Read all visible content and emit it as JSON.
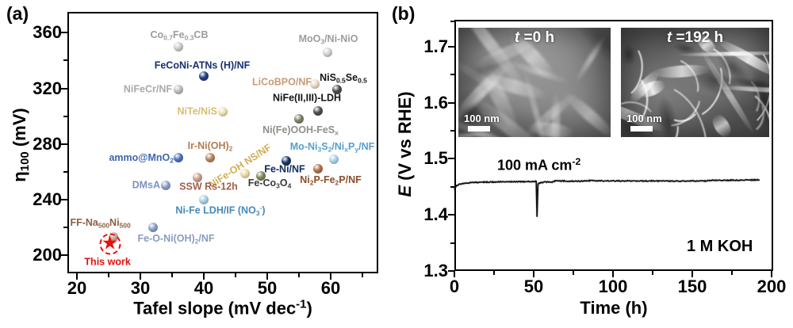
{
  "icons": {
    "star-marker": "★"
  },
  "panels": {
    "a": {
      "tag": "(a)",
      "xlabel": "Tafel slope (mV dec^{-1})",
      "ylabel": "η_{100} (mV)"
    },
    "b": {
      "tag": "(b)",
      "xlabel": "Time (h)",
      "ylabel": "*E* (V vs RHE)",
      "current_density_label": "100 mA cm^{-2}",
      "electrolyte_label": "1 M KOH",
      "insets": [
        {
          "time_label": "*t* =0 h",
          "scalebar_label": "100 nm"
        },
        {
          "time_label": "*t* =192 h",
          "scalebar_label": "100 nm"
        }
      ]
    }
  },
  "chart_data": [
    {
      "id": "catalyst-benchmark-scatter",
      "type": "scatter",
      "title": "",
      "xlabel": "Tafel slope (mV dec-1)",
      "ylabel": "eta100 (mV)",
      "xlim": [
        18.5,
        67.5
      ],
      "ylim": [
        187,
        375
      ],
      "grid": false,
      "legend": "none",
      "xticks": [
        {
          "v": 20,
          "t": "20"
        },
        {
          "v": 30,
          "t": "30"
        },
        {
          "v": 40,
          "t": "40"
        },
        {
          "v": 50,
          "t": "50"
        },
        {
          "v": 60,
          "t": "60"
        }
      ],
      "xticks_minor": [
        25,
        35,
        45,
        55,
        65
      ],
      "yticks": [
        {
          "v": 200,
          "t": "200"
        },
        {
          "v": 240,
          "t": "240"
        },
        {
          "v": 280,
          "t": "280"
        },
        {
          "v": 320,
          "t": "320"
        },
        {
          "v": 360,
          "t": "360"
        }
      ],
      "yticks_minor": [
        220,
        260,
        300,
        340
      ],
      "points": [
        {
          "label": "Co_{0.7}Fe_{0.3}CB",
          "tafel": 36,
          "eta": 350,
          "color": "#cbcbcb",
          "label_color": "#9c9c9c",
          "anchor": "center",
          "lx": 1,
          "ly": -14
        },
        {
          "label": "MoO_{3}/Ni-NiO",
          "tafel": 59.5,
          "eta": 346,
          "color": "#d2d2d2",
          "label_color": "#9c9c9c",
          "anchor": "center",
          "lx": 1,
          "ly": -16
        },
        {
          "label": "FeCoNi-ATNs (H)/NF",
          "tafel": 40,
          "eta": 329,
          "color": "#223f7e",
          "label_color": "#163070",
          "anchor": "center",
          "lx": -2,
          "ly": -13
        },
        {
          "label": "NiFeCr/NF",
          "tafel": 36,
          "eta": 319,
          "color": "#bdbdbd",
          "label_color": "#a9a9a9",
          "anchor": "right",
          "lx": -8,
          "ly": 0
        },
        {
          "label": "LiCoBPO/NF",
          "tafel": 57.5,
          "eta": 323,
          "color": "#ead9c5",
          "label_color": "#c89b76",
          "anchor": "right",
          "lx": -4,
          "ly": -2
        },
        {
          "label": "NiS_{0.5}Se_{0.5}",
          "tafel": 61,
          "eta": 319,
          "color": "#4b4b4b",
          "label_color": "#141414",
          "anchor": "center",
          "lx": 8,
          "ly": -14
        },
        {
          "label": "NiFe(II,III)-LDH",
          "tafel": 58,
          "eta": 304,
          "color": "#4e4e4e",
          "label_color": "#141414",
          "anchor": "center",
          "lx": -14,
          "ly": -16
        },
        {
          "label": "NiTe/NiS",
          "tafel": 43,
          "eta": 303,
          "color": "#ecdfae",
          "label_color": "#d8bd6e",
          "anchor": "right",
          "lx": -7,
          "ly": 0
        },
        {
          "label": "Ni(Fe)OOH-FeS_{x}",
          "tafel": 55,
          "eta": 298,
          "color": "#7e8163",
          "label_color": "#8f9089",
          "anchor": "center",
          "lx": 2,
          "ly": 15
        },
        {
          "label": "ammo@MnO_{2}",
          "tafel": 36,
          "eta": 270,
          "color": "#4f73b8",
          "label_color": "#3f66ae",
          "anchor": "right",
          "lx": -6,
          "ly": 1
        },
        {
          "label": "Ir-Ni(OH)_{2}",
          "tafel": 41,
          "eta": 270,
          "color": "#b8835c",
          "label_color": "#b57c4e",
          "anchor": "center",
          "lx": 0,
          "ly": -14
        },
        {
          "label": "NiFe-OH NS/NF",
          "tafel": 46.5,
          "eta": 259,
          "color": "#ecd9a2",
          "label_color": "#d2ae52",
          "anchor": "center",
          "lx": -6,
          "ly": -9,
          "rotate": -33
        },
        {
          "label": "Fe-Ni/NF",
          "tafel": 53,
          "eta": 268,
          "color": "#1c3468",
          "label_color": "#122a60",
          "anchor": "center",
          "lx": -2,
          "ly": 11
        },
        {
          "label": "Mo-Ni_{3}S_{2}/Ni_{x}P_{y}/NF",
          "tafel": 60.5,
          "eta": 269,
          "color": "#aad2ea",
          "label_color": "#55a0cc",
          "anchor": "center",
          "lx": -2,
          "ly": -15
        },
        {
          "label": "Ni_{2}P-Fe_{2}P/NF",
          "tafel": 58,
          "eta": 262,
          "color": "#b0714b",
          "label_color": "#8a4f2a",
          "anchor": "center",
          "lx": 16,
          "ly": 15
        },
        {
          "label": "Fe-Co_{3}O_{4}",
          "tafel": 49,
          "eta": 257,
          "color": "#7e8557",
          "label_color": "#3b3b3b",
          "anchor": "center",
          "lx": 11,
          "ly": 10
        },
        {
          "label": "SSW Rs-12h",
          "tafel": 39,
          "eta": 256,
          "color": "#caa08b",
          "label_color": "#a05f4b",
          "anchor": "center",
          "lx": 14,
          "ly": 12
        },
        {
          "label": "DMsA",
          "tafel": 34,
          "eta": 250,
          "color": "#8aa0ca",
          "label_color": "#7e92bc",
          "anchor": "right",
          "lx": -7,
          "ly": 0
        },
        {
          "label": "Ni-Fe LDH/IF (NO_{3}^{-})",
          "tafel": 40,
          "eta": 240,
          "color": "#a8cfe5",
          "label_color": "#4788ba",
          "anchor": "center",
          "lx": 21,
          "ly": 14
        },
        {
          "label": "Fe-O-Ni(OH)_{2}/NF",
          "tafel": 32,
          "eta": 220,
          "color": "#8aa0ca",
          "label_color": "#8b9cbd",
          "anchor": "center",
          "lx": 29,
          "ly": 15
        },
        {
          "label": "FF-Na_{500}Ni_{500}",
          "tafel": 25.7,
          "eta": 213,
          "color": "#c9ab97",
          "label_color": "#8a5f42",
          "anchor": "center",
          "lx": -16,
          "ly": -17
        },
        {
          "label": "This work",
          "tafel": 25.2,
          "eta": 208,
          "marker": "star",
          "color": "#e8100c",
          "label_color": "#e8100c",
          "anchor": "center",
          "lx": -3,
          "ly": 23
        }
      ]
    },
    {
      "id": "chronopotentiometry-stability",
      "type": "line",
      "title": "",
      "xlabel": "Time (h)",
      "ylabel": "E (V vs RHE)",
      "xlim": [
        0,
        201
      ],
      "ylim": [
        1.3,
        1.748
      ],
      "grid": false,
      "line_color": "#111111",
      "xticks": [
        {
          "v": 0,
          "t": "0"
        },
        {
          "v": 50,
          "t": "50"
        },
        {
          "v": 100,
          "t": "100"
        },
        {
          "v": 150,
          "t": "150"
        },
        {
          "v": 200,
          "t": "200"
        }
      ],
      "xticks_minor": [
        25,
        75,
        125,
        175
      ],
      "yticks": [
        {
          "v": 1.3,
          "t": "1.3"
        },
        {
          "v": 1.4,
          "t": "1.4"
        },
        {
          "v": 1.5,
          "t": "1.5"
        },
        {
          "v": 1.6,
          "t": "1.6"
        },
        {
          "v": 1.7,
          "t": "1.7"
        }
      ],
      "yticks_minor": [
        1.35,
        1.45,
        1.55,
        1.65,
        1.745
      ],
      "series": [
        {
          "name": "E at 100 mA cm-2 in 1 M KOH",
          "points": [
            [
              0,
              1.4455
            ],
            [
              0.5,
              1.449
            ],
            [
              1.5,
              1.4525
            ],
            [
              3,
              1.4545
            ],
            [
              5,
              1.456
            ],
            [
              8,
              1.457
            ],
            [
              12,
              1.4578
            ],
            [
              18,
              1.4585
            ],
            [
              25,
              1.4588
            ],
            [
              32,
              1.459
            ],
            [
              40,
              1.4593
            ],
            [
              46,
              1.4595
            ],
            [
              50,
              1.4597
            ],
            [
              51.6,
              1.4598
            ],
            [
              52.1,
              1.3965
            ],
            [
              52.7,
              1.4545
            ],
            [
              54,
              1.4575
            ],
            [
              57,
              1.4585
            ],
            [
              62,
              1.4588
            ],
            [
              63.5,
              1.4605
            ],
            [
              68,
              1.4605
            ],
            [
              74,
              1.4603
            ],
            [
              80,
              1.4602
            ],
            [
              85,
              1.4612
            ],
            [
              92,
              1.4608
            ],
            [
              100,
              1.4607
            ],
            [
              110,
              1.4606
            ],
            [
              120,
              1.4605
            ],
            [
              130,
              1.4605
            ],
            [
              140,
              1.4604
            ],
            [
              150,
              1.4603
            ],
            [
              158,
              1.4605
            ],
            [
              163,
              1.4617
            ],
            [
              170,
              1.4618
            ],
            [
              178,
              1.462
            ],
            [
              186,
              1.4622
            ],
            [
              192.5,
              1.4625
            ]
          ]
        }
      ]
    }
  ]
}
